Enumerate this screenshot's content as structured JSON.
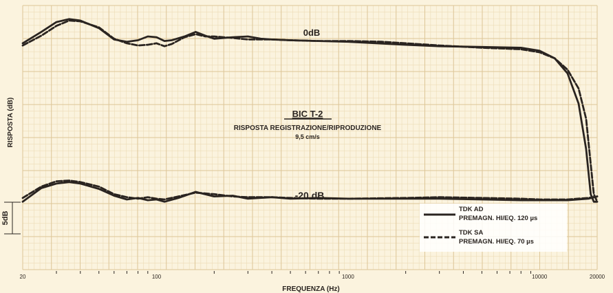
{
  "chart_data": {
    "type": "line",
    "title": "BIC T-2",
    "subtitle": "RISPOSTA REGISTRAZIONE/RIPRODUZIONE",
    "speed": "9,5 cm/s",
    "xlabel": "FREQUENZA (Hz)",
    "ylabel": "RISPOSTA (dB)",
    "scale_label": "5dB",
    "x_scale": "log",
    "xlim": [
      20,
      20000
    ],
    "x_tick_labels": [
      {
        "value": 20,
        "label": "20"
      },
      {
        "value": 100,
        "label": "100"
      },
      {
        "value": 1000,
        "label": "1000"
      },
      {
        "value": 10000,
        "label": "10000"
      },
      {
        "value": 20000,
        "label": "20000"
      }
    ],
    "x_minor_ticks": [
      30,
      40,
      50,
      60,
      70,
      80,
      90,
      200,
      300,
      400,
      500,
      600,
      700,
      800,
      900,
      2000,
      3000,
      4000,
      5000,
      6000,
      7000,
      8000,
      9000
    ],
    "ylim": [
      -30,
      5
    ],
    "grid": true,
    "legend_position": "bottom-right",
    "annotations": [
      {
        "text": "0dB",
        "x": 500,
        "y": 2
      },
      {
        "text": "-20 dB",
        "x": 500,
        "y": -20.5
      }
    ],
    "levels": [
      {
        "name": "0dB",
        "series": [
          {
            "name": "TDK AD",
            "detail": "PREMAGN. HI/EQ. 120 µs",
            "style": "solid",
            "points": [
              [
                20,
                0
              ],
              [
                25,
                1.5
              ],
              [
                30,
                2.8
              ],
              [
                35,
                3.2
              ],
              [
                40,
                3
              ],
              [
                50,
                2
              ],
              [
                60,
                0.5
              ],
              [
                70,
                0.2
              ],
              [
                80,
                0.4
              ],
              [
                90,
                0.9
              ],
              [
                100,
                0.8
              ],
              [
                110,
                0.3
              ],
              [
                120,
                0.4
              ],
              [
                140,
                0.9
              ],
              [
                160,
                1.5
              ],
              [
                180,
                1
              ],
              [
                200,
                0.6
              ],
              [
                250,
                0.8
              ],
              [
                300,
                0.9
              ],
              [
                350,
                0.6
              ],
              [
                400,
                0.5
              ],
              [
                500,
                0.4
              ],
              [
                700,
                0.3
              ],
              [
                1000,
                0.2
              ],
              [
                2000,
                -0.2
              ],
              [
                3000,
                -0.4
              ],
              [
                5000,
                -0.5
              ],
              [
                8000,
                -0.6
              ],
              [
                10000,
                -1
              ],
              [
                12000,
                -2
              ],
              [
                14000,
                -4
              ],
              [
                16000,
                -8
              ],
              [
                17500,
                -14
              ],
              [
                18500,
                -20
              ],
              [
                19200,
                -21
              ],
              [
                20000,
                -21
              ]
            ]
          },
          {
            "name": "TDK SA",
            "detail": "PREMAGN. HI/EQ. 70 µs",
            "style": "dashed",
            "points": [
              [
                20,
                -0.3
              ],
              [
                25,
                1
              ],
              [
                30,
                2.3
              ],
              [
                35,
                3
              ],
              [
                40,
                2.9
              ],
              [
                50,
                2.1
              ],
              [
                60,
                0.6
              ],
              [
                70,
                0
              ],
              [
                80,
                -0.3
              ],
              [
                90,
                -0.2
              ],
              [
                100,
                0
              ],
              [
                110,
                -0.4
              ],
              [
                120,
                -0.1
              ],
              [
                140,
                0.8
              ],
              [
                160,
                1.2
              ],
              [
                180,
                0.9
              ],
              [
                200,
                0.9
              ],
              [
                250,
                0.7
              ],
              [
                300,
                0.5
              ],
              [
                400,
                0.5
              ],
              [
                500,
                0.4
              ],
              [
                700,
                0.3
              ],
              [
                1000,
                0.3
              ],
              [
                1500,
                0.2
              ],
              [
                2000,
                0
              ],
              [
                3000,
                -0.3
              ],
              [
                5000,
                -0.6
              ],
              [
                8000,
                -0.8
              ],
              [
                10000,
                -1.2
              ],
              [
                12000,
                -2
              ],
              [
                14000,
                -3.5
              ],
              [
                16000,
                -6
              ],
              [
                17500,
                -10
              ],
              [
                18500,
                -16
              ],
              [
                19200,
                -20
              ],
              [
                20000,
                -21
              ]
            ]
          }
        ]
      },
      {
        "name": "-20 dB",
        "series": [
          {
            "name": "TDK AD",
            "style": "solid",
            "points": [
              [
                20,
                -21
              ],
              [
                25,
                -19.2
              ],
              [
                30,
                -18.6
              ],
              [
                35,
                -18.4
              ],
              [
                40,
                -18.6
              ],
              [
                50,
                -19.3
              ],
              [
                60,
                -20.2
              ],
              [
                70,
                -20.7
              ],
              [
                80,
                -20.5
              ],
              [
                90,
                -20.8
              ],
              [
                100,
                -20.7
              ],
              [
                110,
                -21
              ],
              [
                130,
                -20.5
              ],
              [
                160,
                -19.7
              ],
              [
                200,
                -20.3
              ],
              [
                250,
                -20.2
              ],
              [
                300,
                -20.6
              ],
              [
                400,
                -20.4
              ],
              [
                500,
                -20.6
              ],
              [
                700,
                -20.5
              ],
              [
                1000,
                -20.6
              ],
              [
                2000,
                -20.6
              ],
              [
                3000,
                -20.6
              ],
              [
                5000,
                -20.7
              ],
              [
                8000,
                -20.8
              ],
              [
                10000,
                -20.8
              ],
              [
                14000,
                -20.8
              ],
              [
                18000,
                -20.6
              ],
              [
                20000,
                -20.3
              ]
            ]
          },
          {
            "name": "TDK SA",
            "style": "dashed",
            "points": [
              [
                20,
                -20.5
              ],
              [
                25,
                -19
              ],
              [
                30,
                -18.3
              ],
              [
                35,
                -18.2
              ],
              [
                40,
                -18.4
              ],
              [
                50,
                -19
              ],
              [
                60,
                -20
              ],
              [
                70,
                -20.4
              ],
              [
                80,
                -20.6
              ],
              [
                90,
                -20.4
              ],
              [
                100,
                -20.6
              ],
              [
                110,
                -20.7
              ],
              [
                130,
                -20.3
              ],
              [
                160,
                -19.8
              ],
              [
                200,
                -20
              ],
              [
                250,
                -20.3
              ],
              [
                300,
                -20.4
              ],
              [
                400,
                -20.4
              ],
              [
                500,
                -20.5
              ],
              [
                700,
                -20.6
              ],
              [
                1000,
                -20.6
              ],
              [
                2000,
                -20.5
              ],
              [
                3000,
                -20.4
              ],
              [
                5000,
                -20.5
              ],
              [
                8000,
                -20.6
              ],
              [
                10000,
                -20.7
              ],
              [
                14000,
                -20.7
              ],
              [
                18000,
                -20.5
              ],
              [
                20000,
                -20.3
              ]
            ]
          }
        ]
      }
    ],
    "legend": [
      {
        "name": "TDK AD",
        "detail": "PREMAGN. HI/EQ. 120 µs",
        "style": "solid"
      },
      {
        "name": "TDK SA",
        "detail": "PREMAGN. HI/EQ. 70 µs",
        "style": "dashed"
      }
    ]
  },
  "colors": {
    "paper": "#fbf3de",
    "grid_minor": "#ecdcb6",
    "grid_major": "#ddc697",
    "ink": "#2a2420",
    "legend_bg": "#ffffff"
  }
}
